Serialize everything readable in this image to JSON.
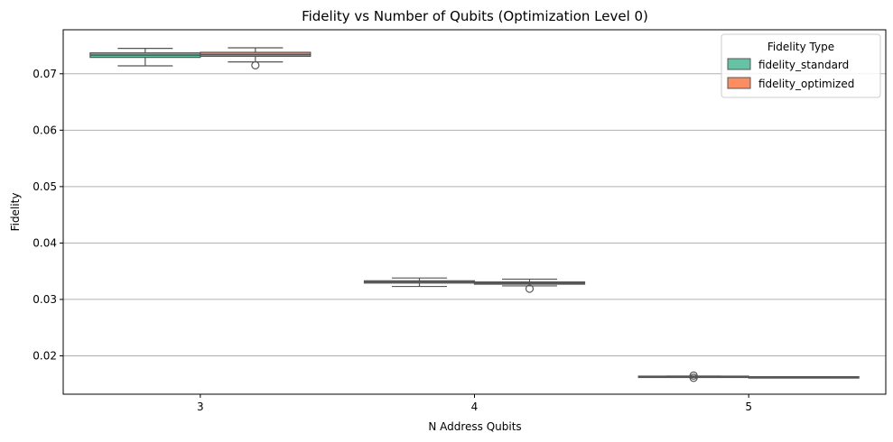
{
  "chart_data": {
    "type": "box",
    "title": "Fidelity vs Number of Qubits (Optimization Level 0)",
    "xlabel": "N Address Qubits",
    "ylabel": "Fidelity",
    "categories": [
      "3",
      "4",
      "5"
    ],
    "ylim": [
      0.0132,
      0.0778
    ],
    "yticks": [
      0.02,
      0.03,
      0.04,
      0.05,
      0.06,
      0.07
    ],
    "ytick_labels": [
      "0.02",
      "0.03",
      "0.04",
      "0.05",
      "0.06",
      "0.07"
    ],
    "grid": "horizontal",
    "legend": {
      "title": "Fidelity Type",
      "position": "top-right"
    },
    "series": [
      {
        "name": "fidelity_standard",
        "color": "#66c2a5",
        "boxes": [
          {
            "category": "3",
            "whisker_low": 0.0714,
            "q1": 0.0729,
            "median": 0.0733,
            "q3": 0.0737,
            "whisker_high": 0.0745,
            "outliers": []
          },
          {
            "category": "4",
            "whisker_low": 0.0323,
            "q1": 0.0329,
            "median": 0.0331,
            "q3": 0.0333,
            "whisker_high": 0.0338,
            "outliers": []
          },
          {
            "category": "5",
            "whisker_low": 0.0162,
            "q1": 0.0162,
            "median": 0.0163,
            "q3": 0.0164,
            "whisker_high": 0.0164,
            "outliers": [
              0.0161,
              0.0165
            ]
          }
        ]
      },
      {
        "name": "fidelity_optimized",
        "color": "#fc8d62",
        "boxes": [
          {
            "category": "3",
            "whisker_low": 0.0721,
            "q1": 0.0731,
            "median": 0.0734,
            "q3": 0.0738,
            "whisker_high": 0.0746,
            "outliers": [
              0.0715
            ]
          },
          {
            "category": "4",
            "whisker_low": 0.0324,
            "q1": 0.0327,
            "median": 0.0329,
            "q3": 0.0331,
            "whisker_high": 0.0336,
            "outliers": [
              0.0319
            ]
          },
          {
            "category": "5",
            "whisker_low": 0.0161,
            "q1": 0.0161,
            "median": 0.0162,
            "q3": 0.0163,
            "whisker_high": 0.0163,
            "outliers": []
          }
        ]
      }
    ]
  }
}
